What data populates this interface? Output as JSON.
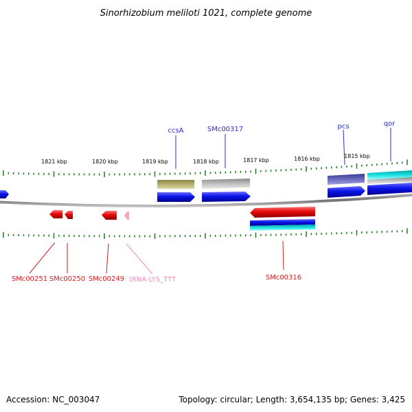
{
  "title": "Sinorhizobium meliloti 1021, complete genome",
  "footer": {
    "accession": "Accession: NC_003047",
    "summary": "Topology: circular; Length: 3,654,135 bp; Genes: 3,425"
  },
  "kbp_labels": [
    "1821 kbp",
    "1820 kbp",
    "1819 kbp",
    "1818 kbp",
    "1817 kbp",
    "1816 kbp",
    "1815 kbp"
  ],
  "genes": {
    "forward_labeled": [
      {
        "name": "ccsA",
        "color": "#2a2ad0"
      },
      {
        "name": "SMc00317",
        "color": "#2a2ad0"
      },
      {
        "name": "pcs",
        "color": "#2a2ad0"
      },
      {
        "name": "qor",
        "color": "#2a2ad0"
      }
    ],
    "reverse_labeled": [
      {
        "name": "SMc00251",
        "color": "#d61a1a"
      },
      {
        "name": "SMc00250",
        "color": "#d61a1a"
      },
      {
        "name": "SMc00249",
        "color": "#d61a1a"
      },
      {
        "name": "tRNA-LYS_TTT",
        "color": "#f08ab8"
      },
      {
        "name": "SMc00316",
        "color": "#d61a1a"
      }
    ]
  },
  "colors": {
    "forward_cds": "#0a14e8",
    "reverse_cds": "#e80a0a",
    "trna": "#f6a6c8",
    "tick": "#1e7a1e",
    "backbone": "#808080",
    "olive_feature": "#b8b070",
    "gray_feature": "#c0c0c0",
    "purple_feature": "#6a6ac0",
    "cyan_feature": "#20e0e0"
  }
}
